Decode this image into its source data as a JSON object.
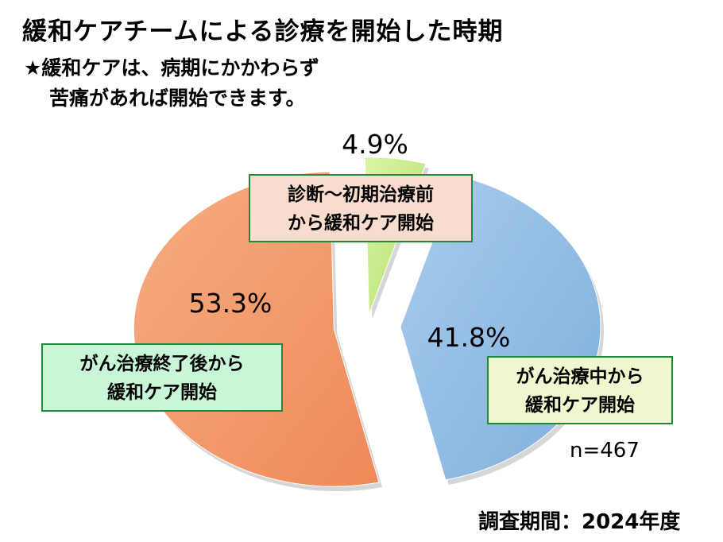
{
  "header": {
    "title": "緩和ケアチームによる診療を開始した時期",
    "note_line1": "★緩和ケアは、病期にかかわらず",
    "note_line2": "苦痛があれば開始できます。"
  },
  "chart_data": {
    "type": "pie",
    "slices": [
      {
        "label_line1": "診断～初期治療前",
        "label_line2": "から緩和ケア開始",
        "value": 4.9,
        "value_text": "4.9%",
        "color": "#c9ee8e"
      },
      {
        "label_line1": "がん治療中から",
        "label_line2": "緩和ケア開始",
        "value": 41.8,
        "value_text": "41.8%",
        "color": "#93bfe6"
      },
      {
        "label_line1": "がん治療終了後から",
        "label_line2": "緩和ケア開始",
        "value": 53.3,
        "value_text": "53.3%",
        "color": "#f39a6b"
      }
    ],
    "exploded": true
  },
  "footer": {
    "n_text": "n=467",
    "period_text": "調査期間：2024年度"
  }
}
